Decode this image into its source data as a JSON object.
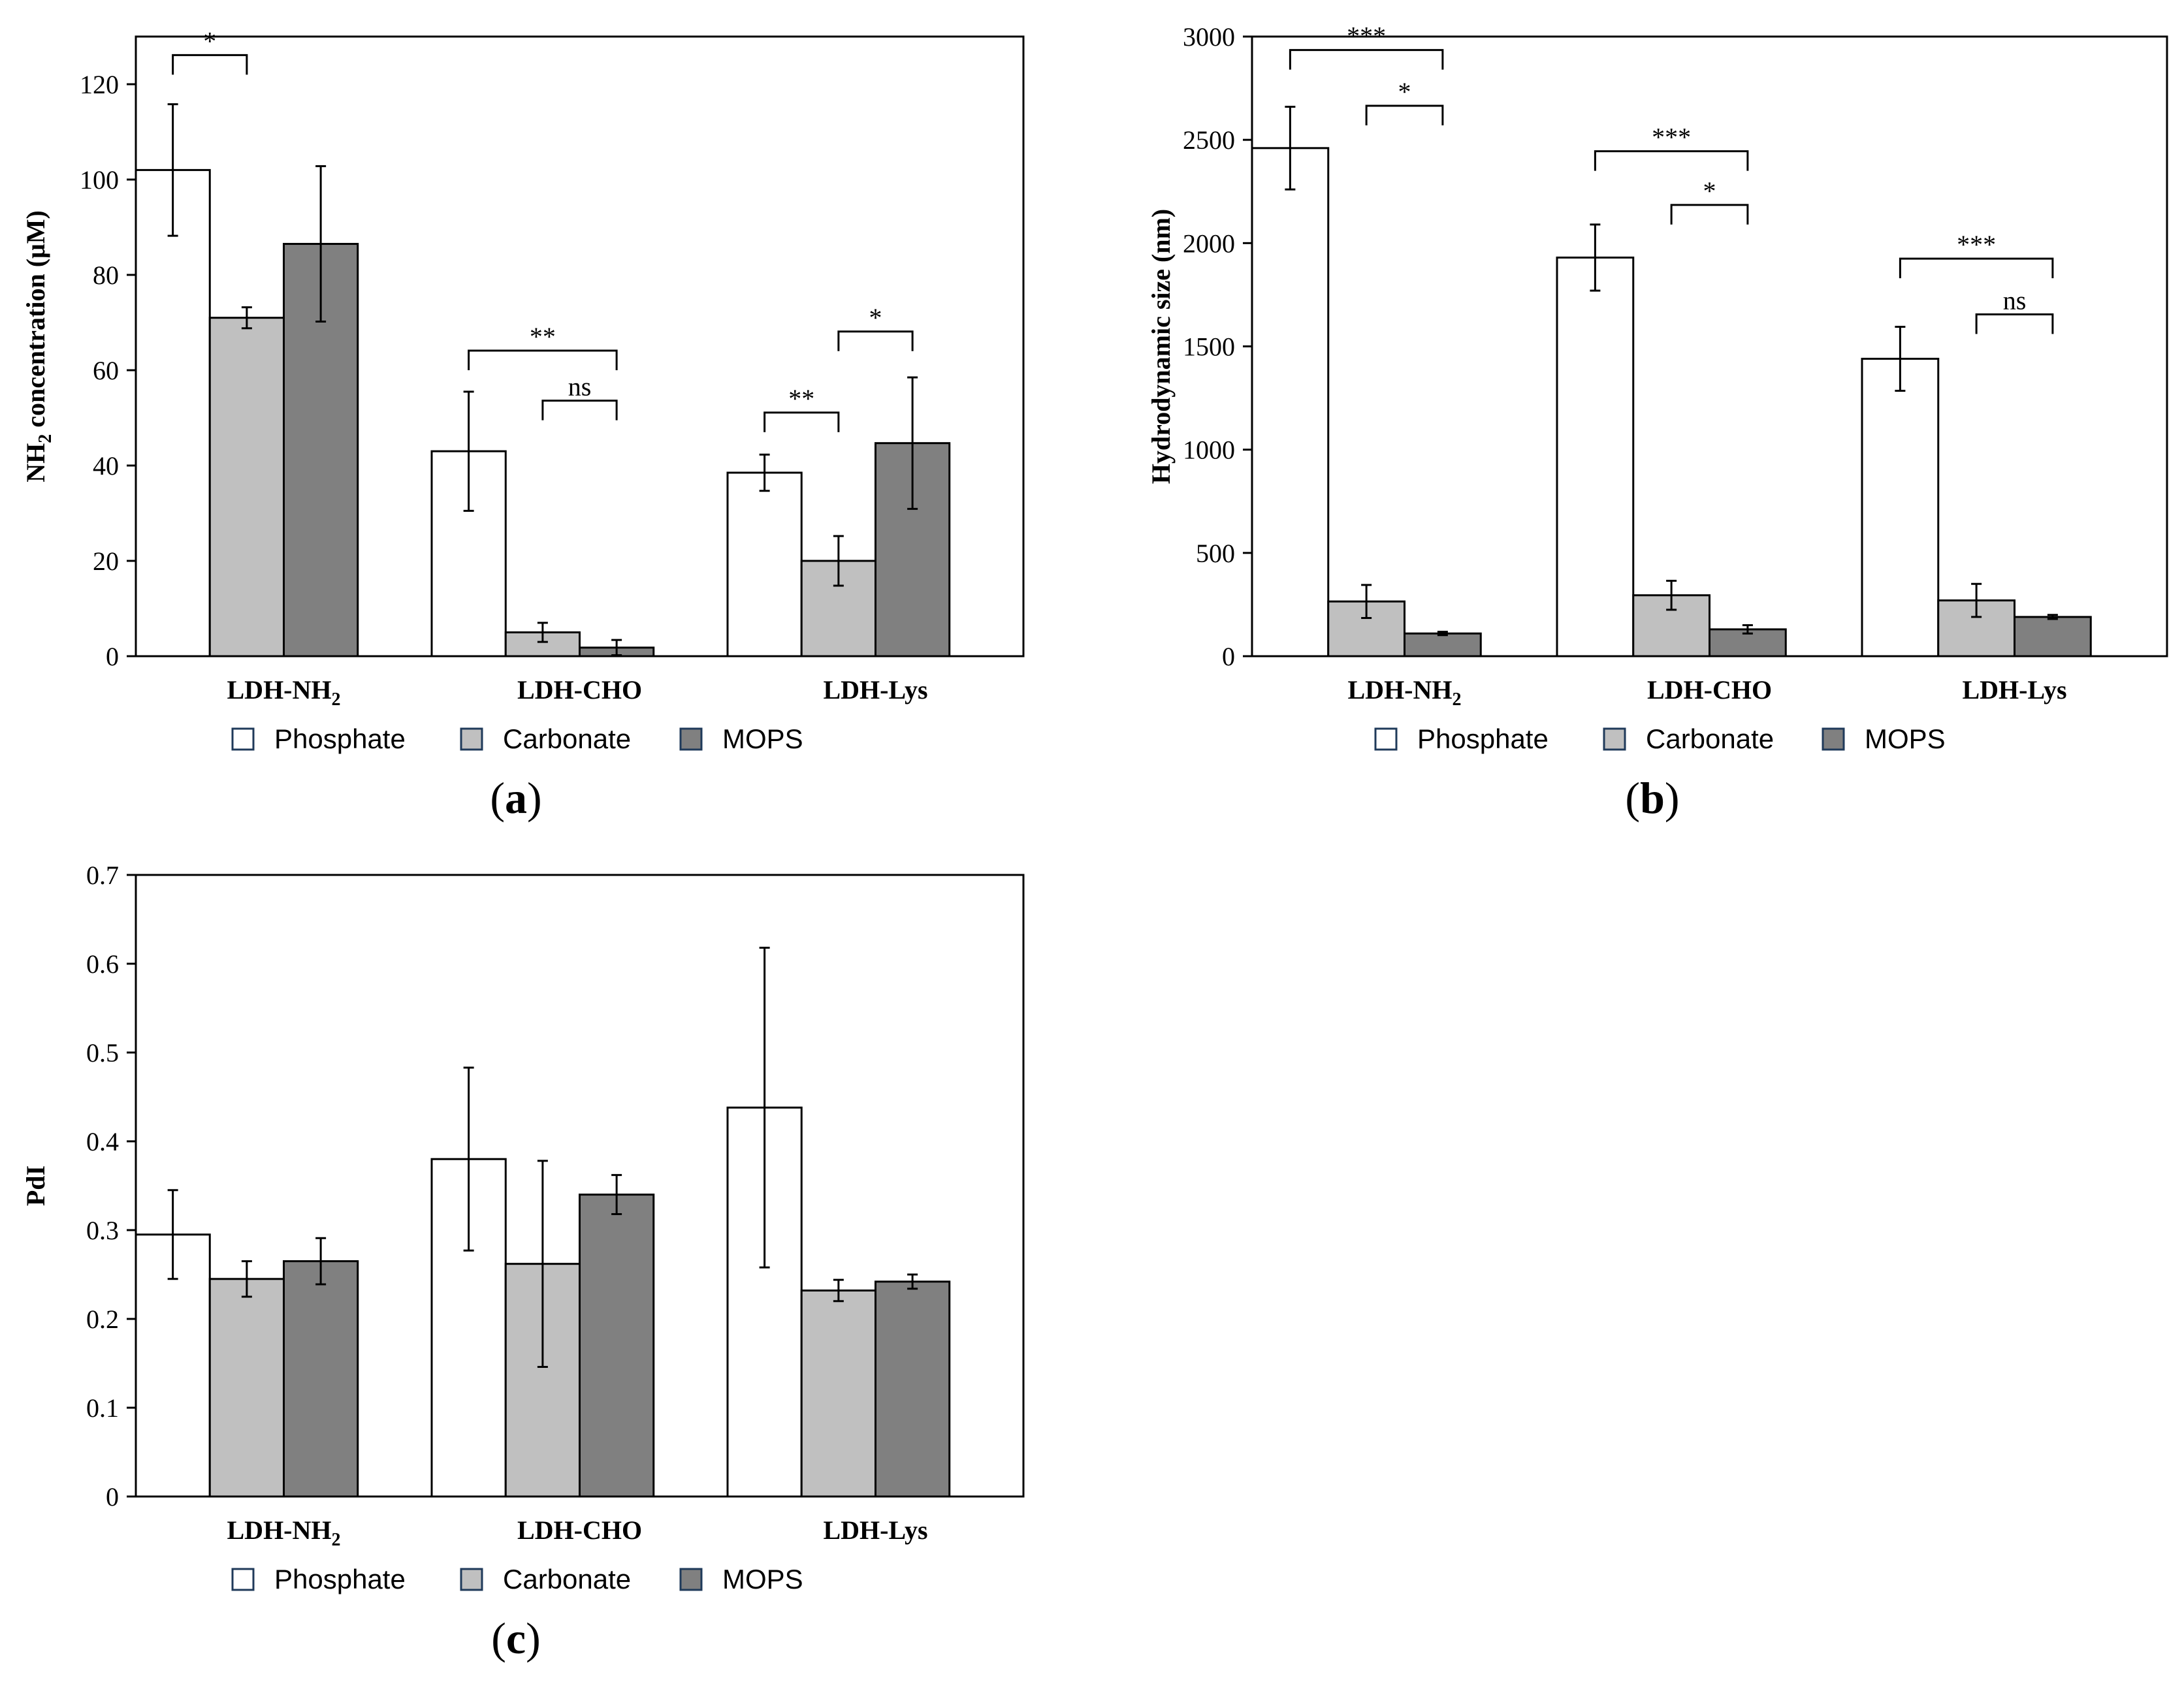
{
  "colors": {
    "Phosphate": "#ffffff",
    "Carbonate": "#c0c0c0",
    "MOPS": "#808080",
    "stroke": "#000000"
  },
  "chart_data": [
    {
      "id": "a",
      "type": "bar",
      "panel_label": "(a)",
      "panel_letter": "a",
      "ylabel_parts": [
        "NH",
        "2",
        " concentration (μM)"
      ],
      "ylim": [
        0,
        130
      ],
      "yticks": [
        0,
        20,
        40,
        60,
        80,
        100,
        120
      ],
      "ytick_labels": [
        "0",
        "20",
        "40",
        "60",
        "80",
        "100",
        "120"
      ],
      "categories": [
        [
          "LDH-NH",
          "2"
        ],
        [
          "LDH-CHO",
          ""
        ],
        [
          "LDH-Lys",
          ""
        ]
      ],
      "series": [
        {
          "name": "Phosphate",
          "values": [
            102,
            43,
            38.5
          ],
          "errors": [
            13.8,
            12.5,
            3.8
          ]
        },
        {
          "name": "Carbonate",
          "values": [
            71,
            5,
            20
          ],
          "errors": [
            2.2,
            2.0,
            5.2
          ]
        },
        {
          "name": "MOPS",
          "values": [
            86.5,
            1.8,
            44.7
          ],
          "errors": [
            16.3,
            1.6,
            13.8
          ]
        }
      ],
      "significance": [
        {
          "group": 0,
          "from": 0,
          "to": 1,
          "bottom_value": 122,
          "label": "*"
        },
        {
          "group": 1,
          "from": 0,
          "to": 2,
          "bottom_value": 60,
          "label": "**"
        },
        {
          "group": 1,
          "from": 1,
          "to": 2,
          "bottom_value": 49.5,
          "label": "ns"
        },
        {
          "group": 2,
          "from": 0,
          "to": 1,
          "bottom_value": 47,
          "label": "**"
        },
        {
          "group": 2,
          "from": 1,
          "to": 2,
          "bottom_value": 64,
          "label": "*"
        }
      ],
      "legend": [
        "Phosphate",
        "Carbonate",
        "MOPS"
      ]
    },
    {
      "id": "b",
      "type": "bar",
      "panel_label": "(b)",
      "panel_letter": "b",
      "ylabel_parts": [
        "Hydrodynamic size (nm)",
        "",
        ""
      ],
      "ylim": [
        0,
        3000
      ],
      "yticks": [
        0,
        500,
        1000,
        1500,
        2000,
        2500,
        3000
      ],
      "ytick_labels": [
        "0",
        "500",
        "1000",
        "1500",
        "2000",
        "2500",
        "3000"
      ],
      "categories": [
        [
          "LDH-NH",
          "2"
        ],
        [
          "LDH-CHO",
          ""
        ],
        [
          "LDH-Lys",
          ""
        ]
      ],
      "series": [
        {
          "name": "Phosphate",
          "values": [
            2460,
            1930,
            1440
          ],
          "errors": [
            200,
            160,
            155
          ]
        },
        {
          "name": "Carbonate",
          "values": [
            265,
            295,
            270
          ],
          "errors": [
            80,
            70,
            80
          ]
        },
        {
          "name": "MOPS",
          "values": [
            110,
            130,
            190
          ],
          "errors": [
            8,
            20,
            10
          ]
        }
      ],
      "significance": [
        {
          "group": 0,
          "from": 0,
          "to": 2,
          "bottom_value": 2840,
          "label": "***"
        },
        {
          "group": 0,
          "from": 1,
          "to": 2,
          "bottom_value": 2570,
          "label": "*"
        },
        {
          "group": 1,
          "from": 0,
          "to": 2,
          "bottom_value": 2350,
          "label": "***"
        },
        {
          "group": 1,
          "from": 1,
          "to": 2,
          "bottom_value": 2090,
          "label": "*"
        },
        {
          "group": 2,
          "from": 0,
          "to": 2,
          "bottom_value": 1830,
          "label": "***"
        },
        {
          "group": 2,
          "from": 1,
          "to": 2,
          "bottom_value": 1560,
          "label": "ns"
        }
      ],
      "legend": [
        "Phosphate",
        "Carbonate",
        "MOPS"
      ]
    },
    {
      "id": "c",
      "type": "bar",
      "panel_label": "(c)",
      "panel_letter": "c",
      "ylabel_parts": [
        "PdI",
        "",
        ""
      ],
      "ylim": [
        0,
        0.7
      ],
      "yticks": [
        0,
        0.1,
        0.2,
        0.3,
        0.4,
        0.5,
        0.6,
        0.7
      ],
      "ytick_labels": [
        "0",
        "0.1",
        "0.2",
        "0.3",
        "0.4",
        "0.5",
        "0.6",
        "0.7"
      ],
      "categories": [
        [
          "LDH-NH",
          "2"
        ],
        [
          "LDH-CHO",
          ""
        ],
        [
          "LDH-Lys",
          ""
        ]
      ],
      "series": [
        {
          "name": "Phosphate",
          "values": [
            0.295,
            0.38,
            0.438
          ],
          "errors": [
            0.05,
            0.103,
            0.18
          ]
        },
        {
          "name": "Carbonate",
          "values": [
            0.245,
            0.262,
            0.232
          ],
          "errors": [
            0.02,
            0.116,
            0.012
          ]
        },
        {
          "name": "MOPS",
          "values": [
            0.265,
            0.34,
            0.242
          ],
          "errors": [
            0.026,
            0.022,
            0.008
          ]
        }
      ],
      "significance": [],
      "legend": [
        "Phosphate",
        "Carbonate",
        "MOPS"
      ]
    }
  ]
}
